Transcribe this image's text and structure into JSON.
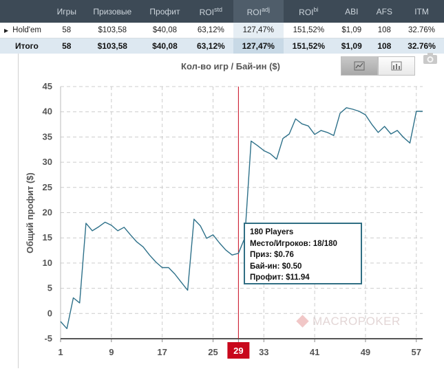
{
  "table": {
    "headers": [
      {
        "label": "",
        "sup": ""
      },
      {
        "label": "Игры",
        "sup": ""
      },
      {
        "label": "Призовые",
        "sup": ""
      },
      {
        "label": "Профит",
        "sup": ""
      },
      {
        "label": "ROI",
        "sup": "std"
      },
      {
        "label": "ROI",
        "sup": "adj"
      },
      {
        "label": "ROI",
        "sup": "bi"
      },
      {
        "label": "ABI",
        "sup": ""
      },
      {
        "label": "AFS",
        "sup": ""
      },
      {
        "label": "ITM",
        "sup": ""
      }
    ],
    "rows": [
      [
        "Hold'em",
        "58",
        "$103,58",
        "$40,08",
        "63,12%",
        "127,47%",
        "151,52%",
        "$1,09",
        "108",
        "32.76%"
      ],
      [
        "Итого",
        "58",
        "$103,58",
        "$40,08",
        "63,12%",
        "127,47%",
        "151,52%",
        "$1,09",
        "108",
        "32.76%"
      ]
    ]
  },
  "chart_data": {
    "type": "line",
    "title": "Кол-во игр / Бай-ин ($)",
    "ylabel": "Общий профит ($)",
    "xlabel": "",
    "xlim": [
      1,
      58
    ],
    "ylim": [
      -5,
      45
    ],
    "yticks": [
      -5,
      0,
      5,
      10,
      15,
      20,
      25,
      30,
      35,
      40,
      45
    ],
    "xticks": [
      1,
      9,
      17,
      25,
      29,
      33,
      41,
      49,
      57
    ],
    "highlight_x": 29,
    "grid": true,
    "series": [
      {
        "x": [
          1,
          2,
          3,
          4,
          5,
          6,
          7,
          8,
          9,
          10,
          11,
          12,
          13,
          14,
          15,
          16,
          17,
          18,
          19,
          20,
          21,
          22,
          23,
          24,
          25,
          26,
          27,
          28,
          29,
          30,
          31,
          32,
          33,
          34,
          35,
          36,
          37,
          38,
          39,
          40,
          41,
          42,
          43,
          44,
          45,
          46,
          47,
          48,
          49,
          50,
          51,
          52,
          53,
          54,
          55,
          56,
          57,
          58
        ],
        "values": [
          -1.6,
          -3.0,
          3.1,
          2.1,
          17.9,
          16.4,
          17.2,
          18.1,
          17.5,
          16.4,
          17.1,
          15.6,
          14.2,
          13.2,
          11.6,
          10.2,
          9.1,
          9.1,
          7.8,
          6.2,
          4.6,
          18.7,
          17.4,
          14.9,
          15.6,
          14.0,
          12.6,
          11.6,
          11.94,
          15.0,
          34.2,
          33.3,
          32.3,
          31.7,
          30.6,
          34.7,
          35.6,
          38.6,
          37.6,
          37.2,
          35.5,
          36.3,
          35.9,
          35.3,
          39.7,
          40.8,
          40.5,
          40.1,
          39.4,
          37.5,
          35.9,
          37.1,
          35.6,
          36.3,
          34.9,
          33.8,
          40.1,
          40.1
        ]
      }
    ]
  },
  "tooltip": {
    "line1": "180 Players",
    "line2": "Место/Игроков: 18/180",
    "line3": "Приз: $0.76",
    "line4": "Бай-ин: $0.50",
    "line5": "Профит: $11.94"
  },
  "toolbar": {
    "line_icon": "line-chart-icon",
    "bar_icon": "bar-chart-icon",
    "camera_icon": "camera-icon"
  },
  "watermark": "MACROPOKER",
  "colors": {
    "line": "#2d7089",
    "marker": "#c8081c",
    "profit_green": "#1b9a29",
    "header_bg": "#3d4a56"
  }
}
